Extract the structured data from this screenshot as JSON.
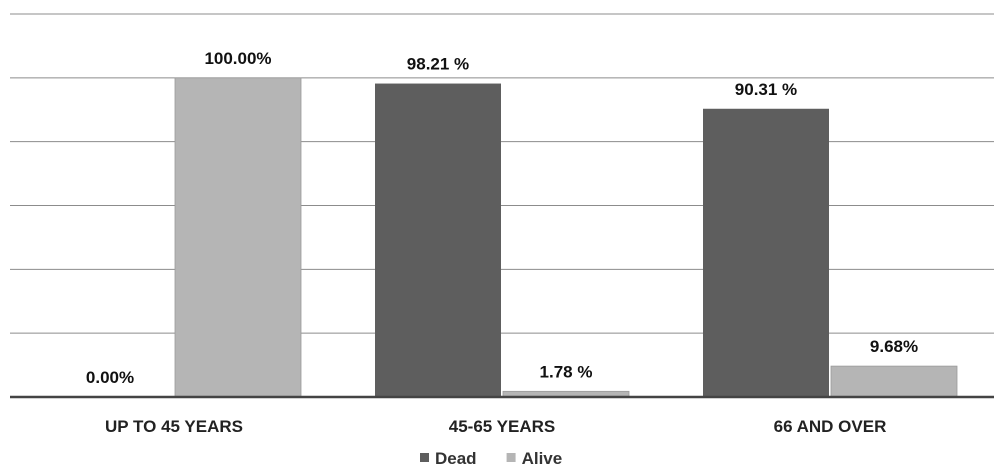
{
  "chart_data": {
    "type": "bar",
    "categories": [
      "UP TO 45 YEARS",
      "45-65 YEARS",
      "66 AND OVER"
    ],
    "series": [
      {
        "name": "Dead",
        "values": [
          0.0,
          98.21,
          90.31
        ],
        "labels": [
          "0.00%",
          "98.21 %",
          "90.31 %"
        ],
        "color": "#5e5e5e"
      },
      {
        "name": "Alive",
        "values": [
          100.0,
          1.78,
          9.68
        ],
        "labels": [
          "100.00%",
          "1.78 %",
          "9.68%"
        ],
        "color": "#b5b5b5"
      }
    ],
    "ylim": [
      0,
      120
    ],
    "grid": true,
    "legend": "bottom",
    "title": "",
    "xlabel": "",
    "ylabel": ""
  }
}
